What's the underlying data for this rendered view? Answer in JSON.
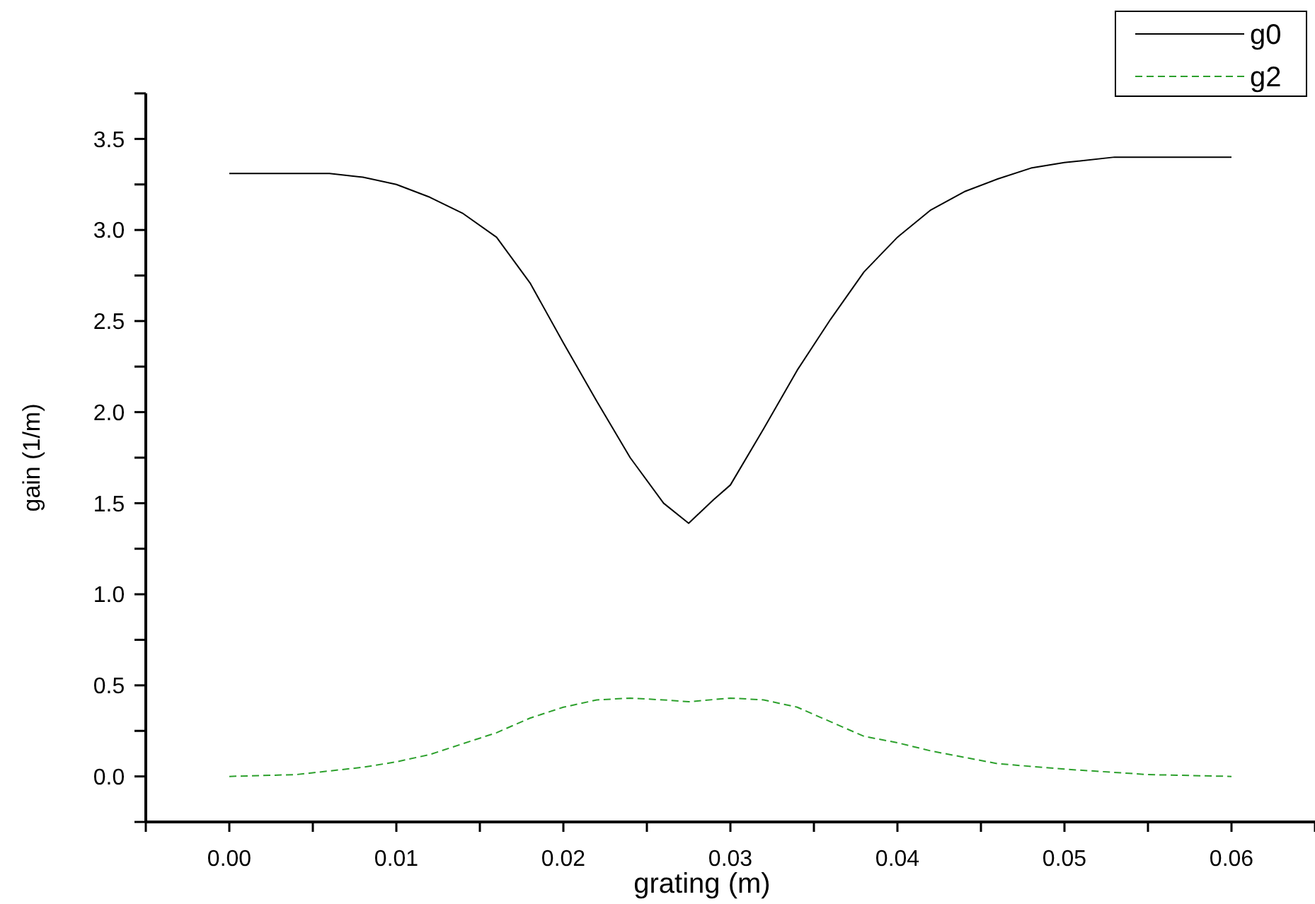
{
  "chart_data": {
    "type": "line",
    "xlabel": "grating (m)",
    "ylabel": "gain (1/m)",
    "xlim": [
      -0.005,
      0.065
    ],
    "ylim": [
      -0.25,
      3.75
    ],
    "xticks": [
      {
        "value": -0.005,
        "label": null
      },
      "0.00",
      {
        "value": 0.005,
        "label": null
      },
      {
        "value": 0.01,
        "label": "0.01"
      },
      {
        "value": 0.015,
        "label": null
      },
      {
        "value": 0.02,
        "label": "0.02"
      },
      {
        "value": 0.025,
        "label": null
      },
      {
        "value": 0.03,
        "label": "0.03"
      },
      {
        "value": 0.035,
        "label": null
      },
      {
        "value": 0.04,
        "label": "0.04"
      },
      {
        "value": 0.045,
        "label": null
      },
      {
        "value": 0.05,
        "label": "0.05"
      },
      {
        "value": 0.055,
        "label": null
      },
      {
        "value": 0.06,
        "label": "0.06"
      },
      {
        "value": 0.065,
        "label": null
      }
    ],
    "yticks": [
      {
        "value": -0.25,
        "label": null
      },
      {
        "value": 0,
        "label": "0.0"
      },
      {
        "value": 0.25,
        "label": null
      },
      {
        "value": 0.5,
        "label": "0.5"
      },
      {
        "value": 0.75,
        "label": null
      },
      {
        "value": 1,
        "label": "1.0"
      },
      {
        "value": 1.25,
        "label": null
      },
      {
        "value": 1.5,
        "label": "1.5"
      },
      {
        "value": 1.75,
        "label": null
      },
      {
        "value": 2,
        "label": "2.0"
      },
      {
        "value": 2.25,
        "label": null
      },
      {
        "value": 2.5,
        "label": "2.5"
      },
      {
        "value": 2.75,
        "label": null
      },
      {
        "value": 3,
        "label": "3.0"
      },
      {
        "value": 3.25,
        "label": null
      },
      {
        "value": 3.5,
        "label": "3.5"
      },
      {
        "value": 3.75,
        "label": null
      }
    ],
    "grid": false,
    "legend": "top right",
    "series": [
      {
        "name": "g0",
        "color": "#000000",
        "line_style": "solid",
        "x": [
          0,
          0.006,
          0.008,
          0.01,
          0.012,
          0.014,
          0.016,
          0.018,
          0.02,
          0.022,
          0.024,
          0.026,
          0.0275,
          0.029,
          0.03,
          0.032,
          0.034,
          0.036,
          0.038,
          0.04,
          0.042,
          0.044,
          0.046,
          0.048,
          0.05,
          0.053,
          0.06
        ],
        "values": [
          3.31,
          3.31,
          3.29,
          3.25,
          3.18,
          3.09,
          2.96,
          2.71,
          2.38,
          2.06,
          1.75,
          1.5,
          1.39,
          1.52,
          1.6,
          1.91,
          2.23,
          2.51,
          2.77,
          2.96,
          3.11,
          3.21,
          3.28,
          3.34,
          3.37,
          3.4,
          3.4
        ]
      },
      {
        "name": "g2",
        "color": "#2ca02c",
        "line_style": "dashed",
        "x": [
          0,
          0.004,
          0.008,
          0.01,
          0.012,
          0.014,
          0.016,
          0.018,
          0.02,
          0.022,
          0.024,
          0.026,
          0.0275,
          0.03,
          0.032,
          0.034,
          0.036,
          0.038,
          0.04,
          0.042,
          0.044,
          0.046,
          0.05,
          0.055,
          0.06
        ],
        "values": [
          0,
          0.01,
          0.05,
          0.08,
          0.12,
          0.18,
          0.24,
          0.32,
          0.38,
          0.42,
          0.43,
          0.42,
          0.41,
          0.43,
          0.42,
          0.38,
          0.3,
          0.22,
          0.185,
          0.14,
          0.105,
          0.07,
          0.04,
          0.01,
          0
        ]
      }
    ]
  }
}
